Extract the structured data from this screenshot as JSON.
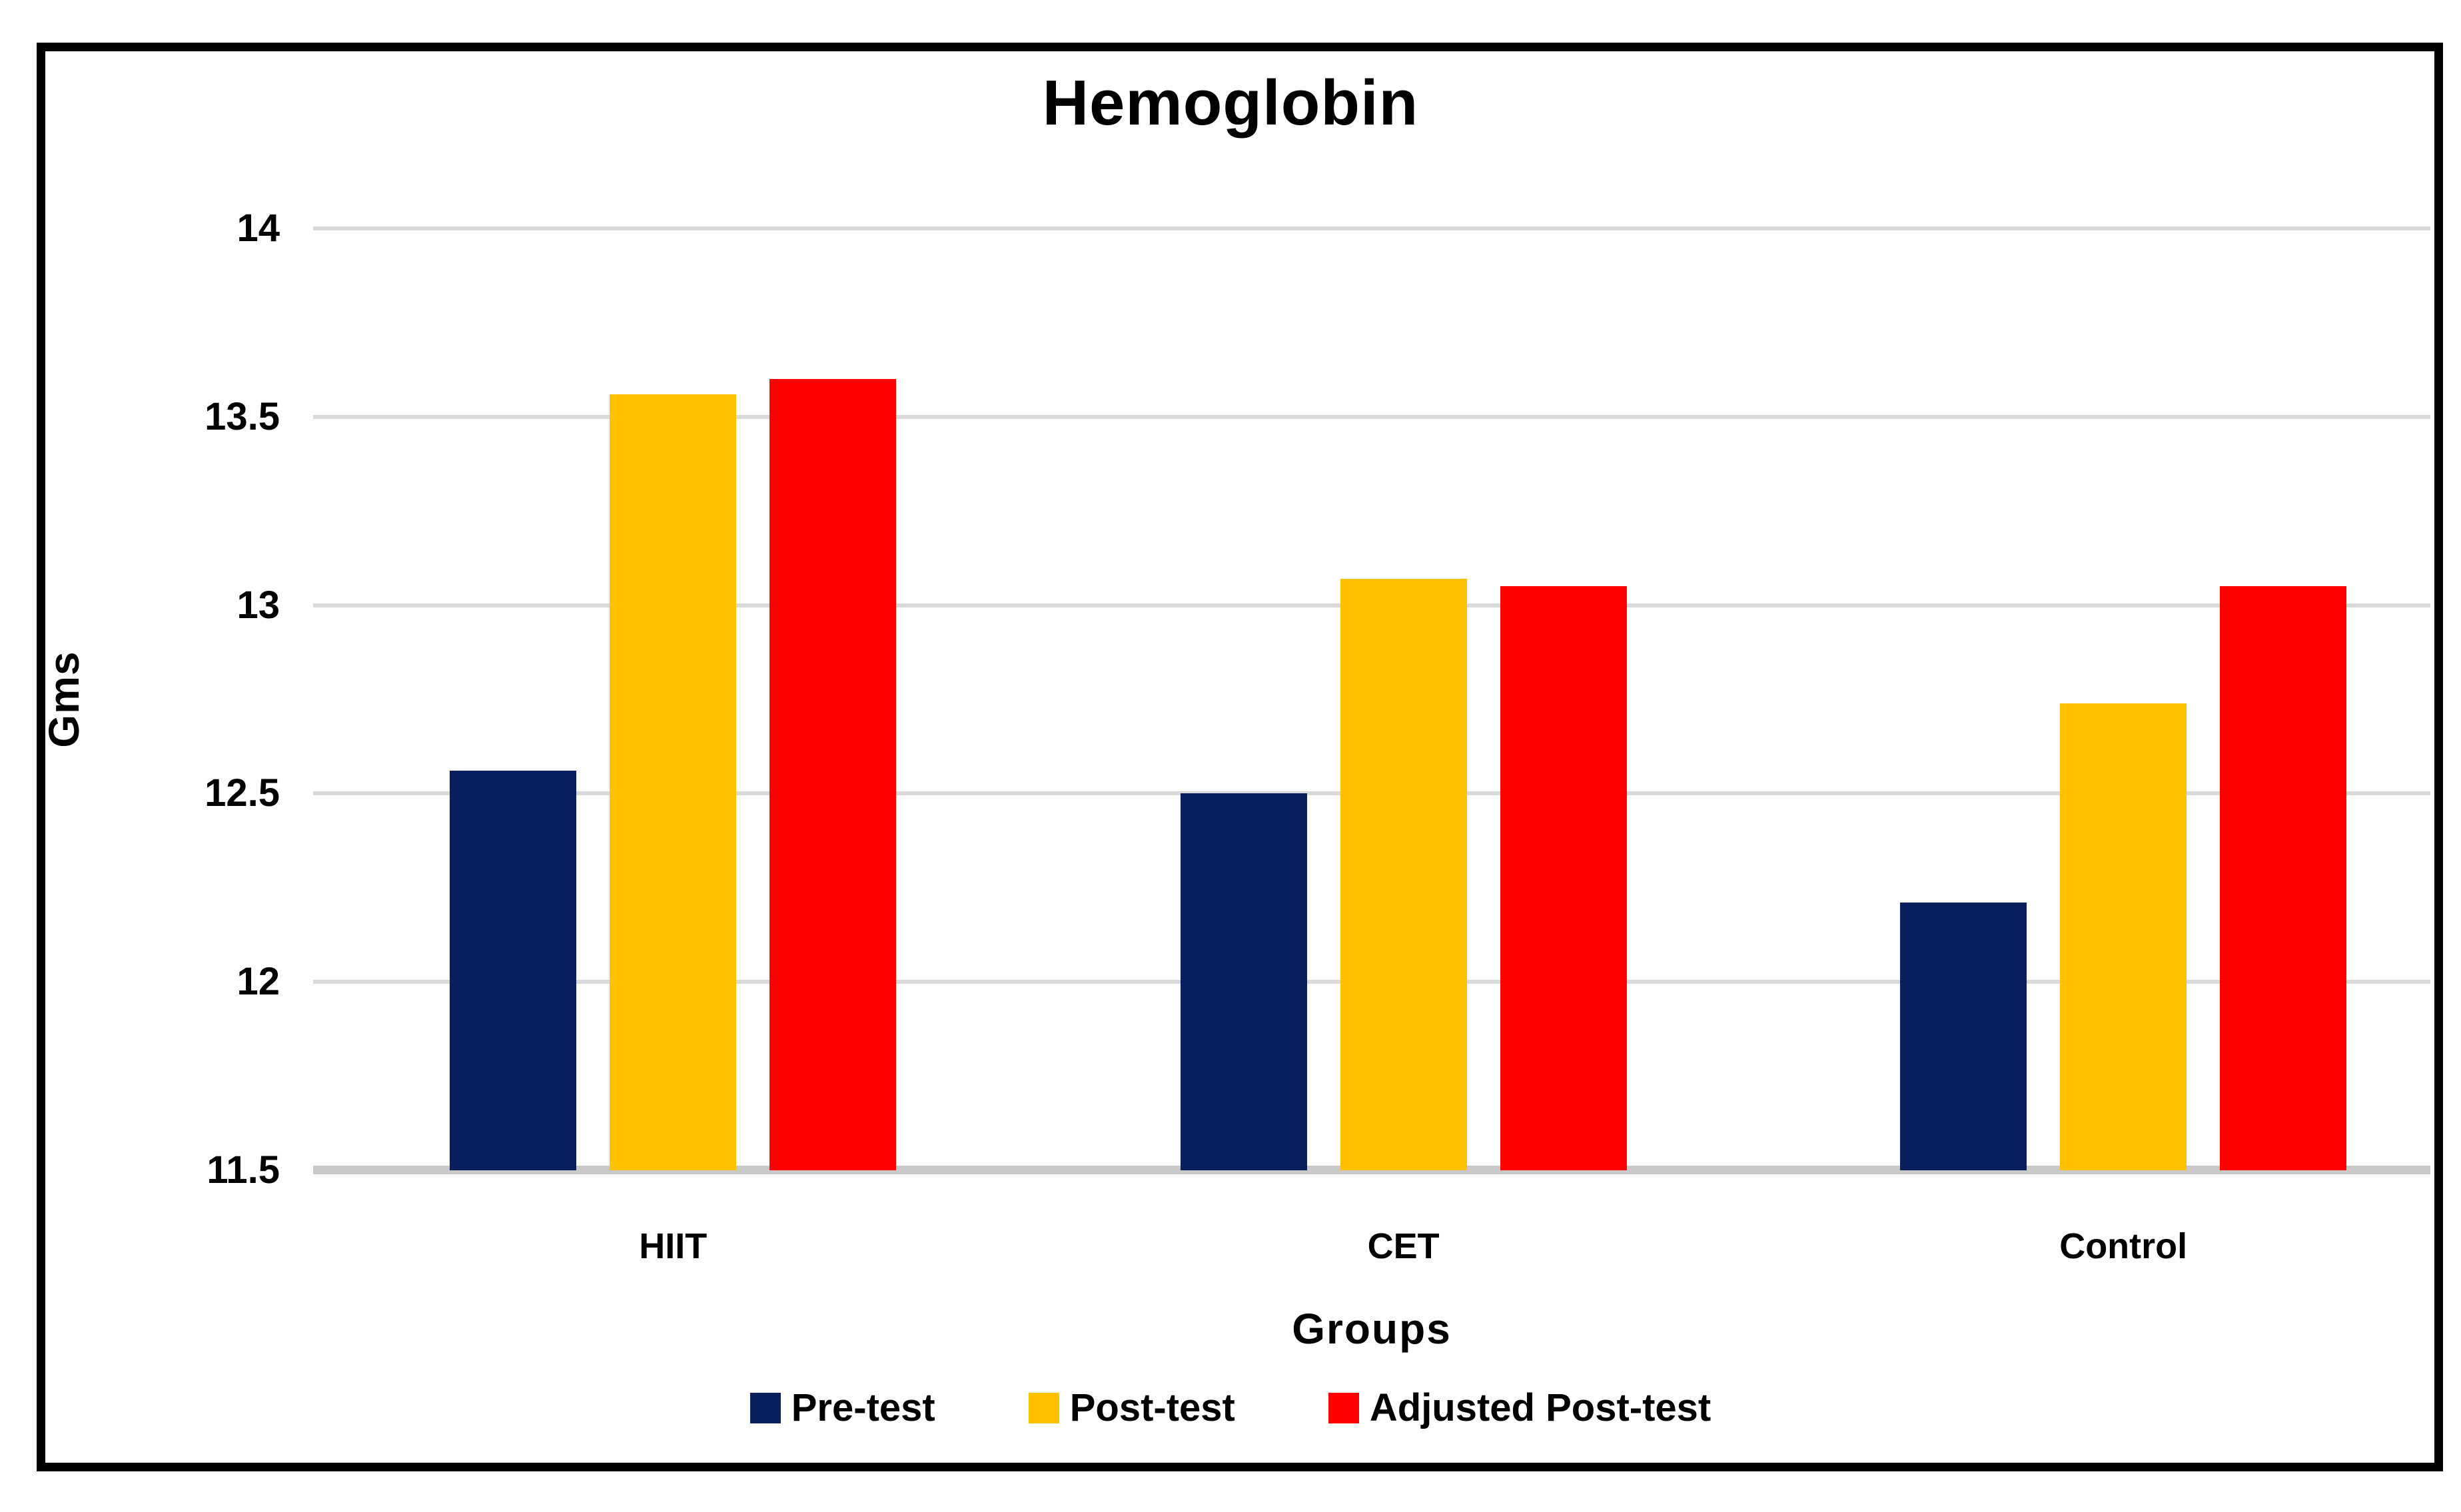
{
  "chart_data": {
    "type": "bar",
    "title": "Hemoglobin",
    "xlabel": "Groups",
    "ylabel": "Gms",
    "categories": [
      "HIIT",
      "CET",
      "Control"
    ],
    "series": [
      {
        "name": "Pre-test",
        "color": "#0a1f5e",
        "values": [
          12.56,
          12.5,
          12.21
        ]
      },
      {
        "name": "Post-test",
        "color": "#ffc000",
        "values": [
          13.56,
          13.07,
          12.74
        ]
      },
      {
        "name": "Adjusted Post-test",
        "color": "#ff0000",
        "values": [
          13.6,
          13.05,
          13.05
        ]
      }
    ],
    "ylim": [
      11.5,
      14
    ],
    "yticks": [
      14,
      13.5,
      13,
      12.5,
      12,
      11.5
    ],
    "grid": "horizontal",
    "legend_position": "bottom",
    "gridline_color": "#d9d9d9",
    "baseline_color": "#c9c9c9",
    "border_color": "#000000",
    "background_color": "#ffffff"
  }
}
